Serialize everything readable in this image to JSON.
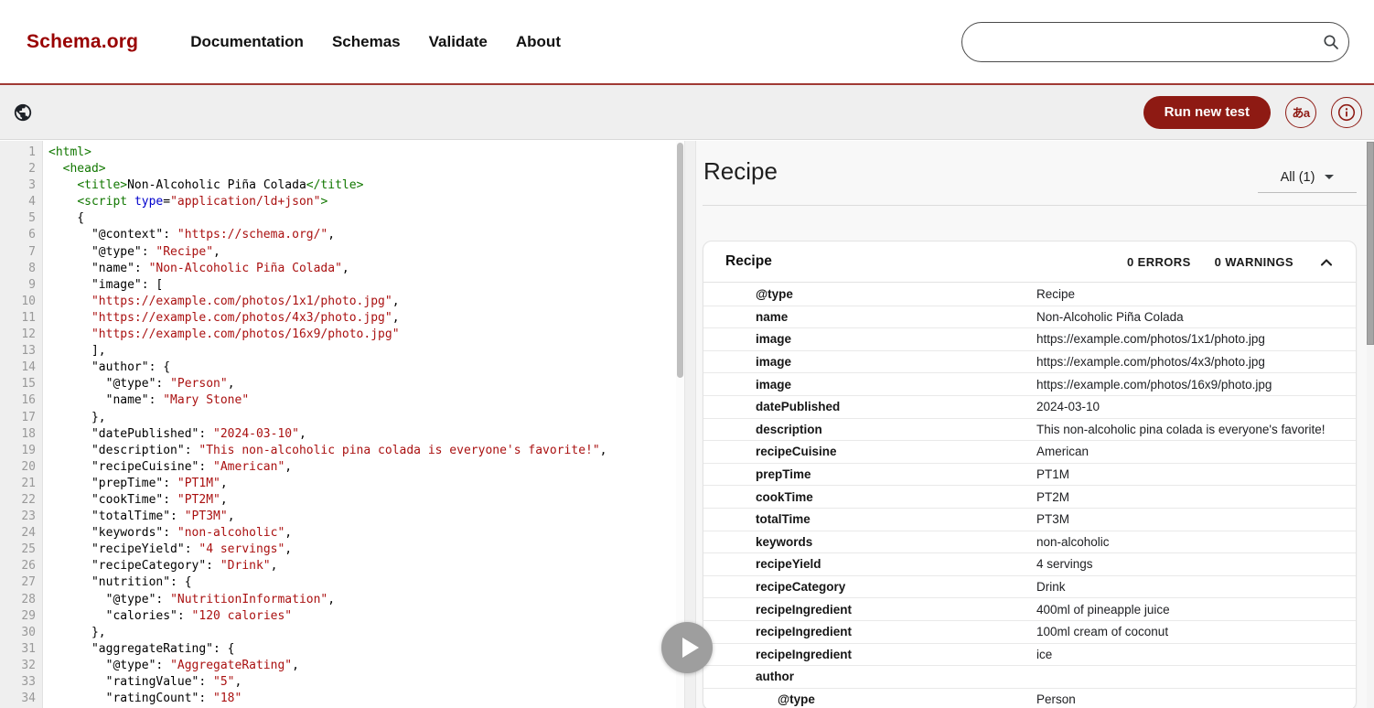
{
  "colors": {
    "brand_red": "#990000",
    "button_red": "#8e1a13",
    "code_tag": "#117700",
    "code_attr": "#0000cc",
    "code_string": "#aa1111"
  },
  "header": {
    "logo": "Schema.org",
    "nav": [
      "Documentation",
      "Schemas",
      "Validate",
      "About"
    ],
    "search": {
      "value": ""
    }
  },
  "toolbar": {
    "run_button": "Run new test",
    "translate_button": "あa"
  },
  "editor": {
    "lines": [
      [
        [
          "tag",
          "<html>"
        ]
      ],
      [
        [
          "plain",
          "  "
        ],
        [
          "tag",
          "<head>"
        ]
      ],
      [
        [
          "plain",
          "    "
        ],
        [
          "tag",
          "<title>"
        ],
        [
          "plain",
          "Non-Alcoholic Piña Colada"
        ],
        [
          "tag",
          "</title>"
        ]
      ],
      [
        [
          "plain",
          "    "
        ],
        [
          "tag",
          "<script"
        ],
        [
          "plain",
          " "
        ],
        [
          "attr",
          "type"
        ],
        [
          "plain",
          "="
        ],
        [
          "str",
          "\"application/ld+json\""
        ],
        [
          "tag",
          ">"
        ]
      ],
      [
        [
          "plain",
          "    {"
        ]
      ],
      [
        [
          "plain",
          "      \"@context\": "
        ],
        [
          "str",
          "\"https://schema.org/\""
        ],
        [
          "plain",
          ","
        ]
      ],
      [
        [
          "plain",
          "      \"@type\": "
        ],
        [
          "str",
          "\"Recipe\""
        ],
        [
          "plain",
          ","
        ]
      ],
      [
        [
          "plain",
          "      \"name\": "
        ],
        [
          "str",
          "\"Non-Alcoholic Piña Colada\""
        ],
        [
          "plain",
          ","
        ]
      ],
      [
        [
          "plain",
          "      \"image\": ["
        ]
      ],
      [
        [
          "plain",
          "      "
        ],
        [
          "str",
          "\"https://example.com/photos/1x1/photo.jpg\""
        ],
        [
          "plain",
          ","
        ]
      ],
      [
        [
          "plain",
          "      "
        ],
        [
          "str",
          "\"https://example.com/photos/4x3/photo.jpg\""
        ],
        [
          "plain",
          ","
        ]
      ],
      [
        [
          "plain",
          "      "
        ],
        [
          "str",
          "\"https://example.com/photos/16x9/photo.jpg\""
        ]
      ],
      [
        [
          "plain",
          "      ],"
        ]
      ],
      [
        [
          "plain",
          "      \"author\": {"
        ]
      ],
      [
        [
          "plain",
          "        \"@type\": "
        ],
        [
          "str",
          "\"Person\""
        ],
        [
          "plain",
          ","
        ]
      ],
      [
        [
          "plain",
          "        \"name\": "
        ],
        [
          "str",
          "\"Mary Stone\""
        ]
      ],
      [
        [
          "plain",
          "      },"
        ]
      ],
      [
        [
          "plain",
          "      \"datePublished\": "
        ],
        [
          "str",
          "\"2024-03-10\""
        ],
        [
          "plain",
          ","
        ]
      ],
      [
        [
          "plain",
          "      \"description\": "
        ],
        [
          "str",
          "\"This non-alcoholic pina colada is everyone's favorite!\""
        ],
        [
          "plain",
          ","
        ]
      ],
      [
        [
          "plain",
          "      \"recipeCuisine\": "
        ],
        [
          "str",
          "\"American\""
        ],
        [
          "plain",
          ","
        ]
      ],
      [
        [
          "plain",
          "      \"prepTime\": "
        ],
        [
          "str",
          "\"PT1M\""
        ],
        [
          "plain",
          ","
        ]
      ],
      [
        [
          "plain",
          "      \"cookTime\": "
        ],
        [
          "str",
          "\"PT2M\""
        ],
        [
          "plain",
          ","
        ]
      ],
      [
        [
          "plain",
          "      \"totalTime\": "
        ],
        [
          "str",
          "\"PT3M\""
        ],
        [
          "plain",
          ","
        ]
      ],
      [
        [
          "plain",
          "      \"keywords\": "
        ],
        [
          "str",
          "\"non-alcoholic\""
        ],
        [
          "plain",
          ","
        ]
      ],
      [
        [
          "plain",
          "      \"recipeYield\": "
        ],
        [
          "str",
          "\"4 servings\""
        ],
        [
          "plain",
          ","
        ]
      ],
      [
        [
          "plain",
          "      \"recipeCategory\": "
        ],
        [
          "str",
          "\"Drink\""
        ],
        [
          "plain",
          ","
        ]
      ],
      [
        [
          "plain",
          "      \"nutrition\": {"
        ]
      ],
      [
        [
          "plain",
          "        \"@type\": "
        ],
        [
          "str",
          "\"NutritionInformation\""
        ],
        [
          "plain",
          ","
        ]
      ],
      [
        [
          "plain",
          "        \"calories\": "
        ],
        [
          "str",
          "\"120 calories\""
        ]
      ],
      [
        [
          "plain",
          "      },"
        ]
      ],
      [
        [
          "plain",
          "      \"aggregateRating\": {"
        ]
      ],
      [
        [
          "plain",
          "        \"@type\": "
        ],
        [
          "str",
          "\"AggregateRating\""
        ],
        [
          "plain",
          ","
        ]
      ],
      [
        [
          "plain",
          "        \"ratingValue\": "
        ],
        [
          "str",
          "\"5\""
        ],
        [
          "plain",
          ","
        ]
      ],
      [
        [
          "plain",
          "        \"ratingCount\": "
        ],
        [
          "str",
          "\"18\""
        ]
      ]
    ]
  },
  "results": {
    "title": "Recipe",
    "filter_label": "All (1)",
    "card": {
      "title": "Recipe",
      "errors_label": "0 ERRORS",
      "warnings_label": "0 WARNINGS"
    },
    "rows": [
      {
        "property": "@type",
        "value": "Recipe",
        "indent": 0
      },
      {
        "property": "name",
        "value": "Non-Alcoholic Piña Colada",
        "indent": 0
      },
      {
        "property": "image",
        "value": "https://example.com/photos/1x1/photo.jpg",
        "indent": 0
      },
      {
        "property": "image",
        "value": "https://example.com/photos/4x3/photo.jpg",
        "indent": 0
      },
      {
        "property": "image",
        "value": "https://example.com/photos/16x9/photo.jpg",
        "indent": 0
      },
      {
        "property": "datePublished",
        "value": "2024-03-10",
        "indent": 0
      },
      {
        "property": "description",
        "value": "This non-alcoholic pina colada is everyone's favorite!",
        "indent": 0
      },
      {
        "property": "recipeCuisine",
        "value": "American",
        "indent": 0
      },
      {
        "property": "prepTime",
        "value": "PT1M",
        "indent": 0
      },
      {
        "property": "cookTime",
        "value": "PT2M",
        "indent": 0
      },
      {
        "property": "totalTime",
        "value": "PT3M",
        "indent": 0
      },
      {
        "property": "keywords",
        "value": "non-alcoholic",
        "indent": 0
      },
      {
        "property": "recipeYield",
        "value": "4 servings",
        "indent": 0
      },
      {
        "property": "recipeCategory",
        "value": "Drink",
        "indent": 0
      },
      {
        "property": "recipeIngredient",
        "value": "400ml of pineapple juice",
        "indent": 0
      },
      {
        "property": "recipeIngredient",
        "value": "100ml cream of coconut",
        "indent": 0
      },
      {
        "property": "recipeIngredient",
        "value": "ice",
        "indent": 0
      },
      {
        "property": "author",
        "value": "",
        "indent": 0
      },
      {
        "property": "@type",
        "value": "Person",
        "indent": 1
      }
    ]
  }
}
